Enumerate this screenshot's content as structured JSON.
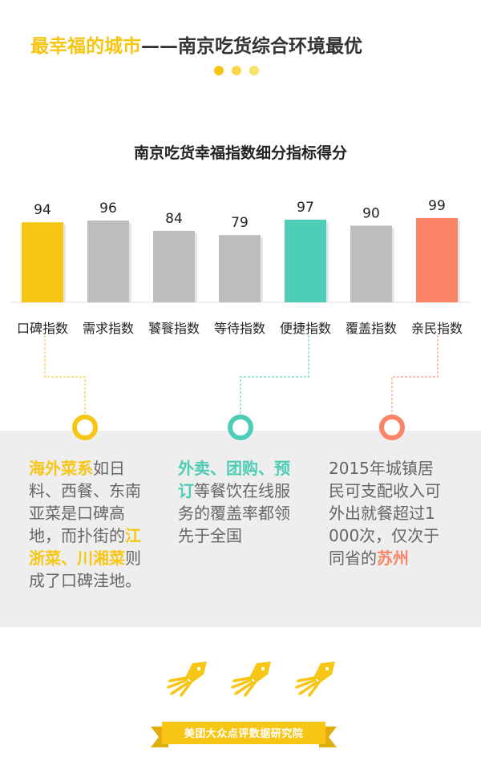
{
  "header": {
    "title_highlight": "最幸福的城市",
    "title_rest": "——南京吃货综合环境最优"
  },
  "colors": {
    "yellow": "#f7c614",
    "teal": "#4ecdb6",
    "coral": "#fb8466",
    "gray_bar": "#bdbdbd",
    "dot_1": "#f7c614",
    "dot_2": "#f9d84a",
    "dot_3": "#f5e36a"
  },
  "chart_data": {
    "type": "bar",
    "title": "南京吃货幸福指数细分指标得分",
    "categories": [
      "口碑指数",
      "需求指数",
      "饕餮指数",
      "等待指数",
      "便捷指数",
      "覆盖指数",
      "亲民指数"
    ],
    "values": [
      94,
      96,
      84,
      79,
      97,
      90,
      99
    ],
    "colors": [
      "#f7c614",
      "#bdbdbd",
      "#bdbdbd",
      "#bdbdbd",
      "#4ecdb6",
      "#bdbdbd",
      "#fb8466"
    ],
    "grid": false
  },
  "notes": [
    {
      "parts": [
        {
          "text": "海外菜系",
          "highlight": true
        },
        {
          "text": "如日料、西餐、东南亚菜是口碑高地，而扑街的",
          "highlight": false
        },
        {
          "text": "江浙菜、川湘菜",
          "highlight": true
        },
        {
          "text": "则成了口碑洼地。",
          "highlight": false
        }
      ],
      "color": "#f7c614"
    },
    {
      "parts": [
        {
          "text": "外卖、团购、预订",
          "highlight": true
        },
        {
          "text": "等餐饮在线服务的覆盖率都领先于全国",
          "highlight": false
        }
      ],
      "color": "#4ecdb6"
    },
    {
      "parts": [
        {
          "text": "2015年城镇居民可支配收入可外出就餐超过1000次，仅次于同省的",
          "highlight": false
        },
        {
          "text": "苏州",
          "highlight": true
        }
      ],
      "color": "#fb8466"
    }
  ],
  "footer": {
    "label": "美团大众点评数据研究院"
  }
}
